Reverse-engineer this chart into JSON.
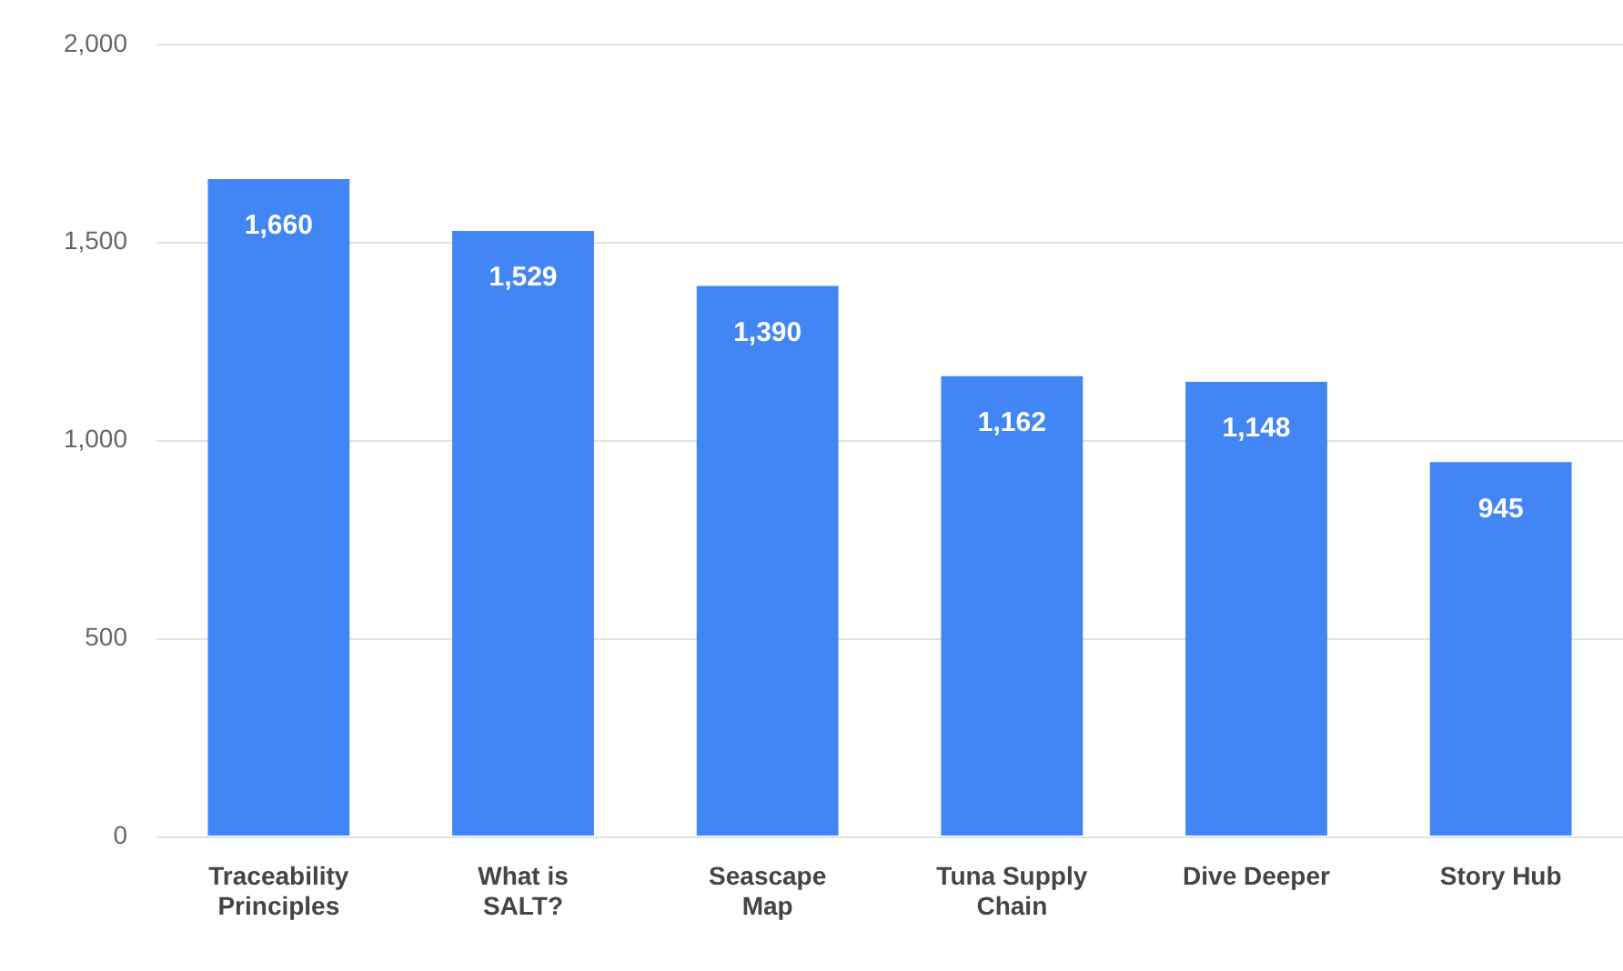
{
  "chart_data": {
    "type": "bar",
    "categories": [
      "Traceability Principles",
      "What is SALT?",
      "Seascape Map",
      "Tuna Supply Chain",
      "Dive Deeper",
      "Story Hub"
    ],
    "values": [
      1660,
      1529,
      1390,
      1162,
      1148,
      945
    ],
    "value_labels": [
      "1,660",
      "1,529",
      "1,390",
      "1,162",
      "1,148",
      "945"
    ],
    "color": "#4285f4",
    "ylim": [
      0,
      2000
    ],
    "yticks": [
      0,
      500,
      {
        "value": 1000,
        "label": "1,000"
      },
      {
        "value": 1500,
        "label": "1,500"
      },
      {
        "value": 2000,
        "label": "2,000"
      }
    ],
    "grid": "y"
  }
}
